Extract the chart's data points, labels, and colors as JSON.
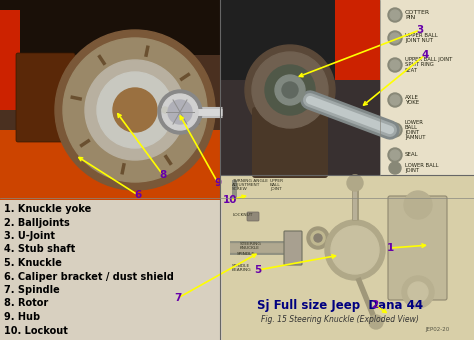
{
  "bg_color": "#d8d0c0",
  "legend_items": [
    "1. Knuckle yoke",
    "2. Balljoints",
    "3. U-Joint",
    "4. Stub shaft",
    "5. Knuckle",
    "6. Caliper bracket / dust shield",
    "7. Spindle",
    "8. Rotor",
    "9. Hub",
    "10. Lockout"
  ],
  "legend_fontsize": 7.0,
  "legend_color": "#000000",
  "arrow_color": "#ffff00",
  "number_color": "#6600aa",
  "number_fontsize": 7.5,
  "diagram_title": "Sj Full size Jeep  Dana 44",
  "diagram_subtitle": "Fig. 15 Steering Knuckle (Exploded View)",
  "diagram_title_color": "#000080",
  "diagram_title_fontsize": 8.5,
  "diagram_subtitle_fontsize": 5.5,
  "schematic_bg": "#d8cfa8",
  "parts_bg": "#e8e0c8",
  "left_photo_dark": "#3a2010",
  "left_photo_rust": "#7a3a18",
  "left_photo_orange": "#cc4400",
  "left_photo_silver": "#c8c8c0",
  "left_photo_chrome": "#e0e0e8",
  "right_photo_dark": "#404040",
  "right_photo_rust": "#6a5040",
  "right_photo_silver": "#9090a0",
  "right_photo_red": "#cc2200",
  "right_photo_gray": "#707878"
}
